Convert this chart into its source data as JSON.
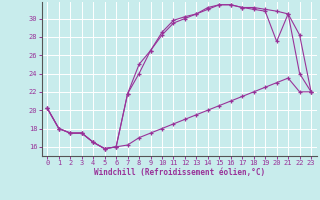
{
  "xlabel": "Windchill (Refroidissement éolien,°C)",
  "bg_color": "#c8ecec",
  "line_color": "#993399",
  "grid_color": "#ffffff",
  "xlim": [
    -0.5,
    23.5
  ],
  "ylim": [
    15.0,
    31.8
  ],
  "yticks": [
    16,
    18,
    20,
    22,
    24,
    26,
    28,
    30
  ],
  "xticks": [
    0,
    1,
    2,
    3,
    4,
    5,
    6,
    7,
    8,
    9,
    10,
    11,
    12,
    13,
    14,
    15,
    16,
    17,
    18,
    19,
    20,
    21,
    22,
    23
  ],
  "line1_x": [
    0,
    1,
    2,
    3,
    4,
    5,
    6,
    7,
    8,
    9,
    10,
    11,
    12,
    13,
    14,
    15,
    16,
    17,
    18,
    19,
    20,
    21,
    22,
    23
  ],
  "line1_y": [
    20.2,
    18.0,
    17.5,
    17.5,
    16.5,
    15.8,
    16.0,
    16.2,
    17.0,
    17.5,
    18.0,
    18.5,
    19.0,
    19.5,
    20.0,
    20.5,
    21.0,
    21.5,
    22.0,
    22.5,
    23.0,
    23.5,
    22.0,
    22.0
  ],
  "line2_x": [
    0,
    1,
    2,
    3,
    4,
    5,
    6,
    7,
    8,
    9,
    10,
    11,
    12,
    13,
    14,
    15,
    16,
    17,
    18,
    19,
    20,
    21,
    22,
    23
  ],
  "line2_y": [
    20.2,
    18.0,
    17.5,
    17.5,
    16.5,
    15.8,
    16.0,
    21.8,
    25.0,
    26.5,
    28.5,
    29.8,
    30.2,
    30.5,
    31.2,
    31.5,
    31.5,
    31.2,
    31.2,
    31.0,
    30.8,
    30.5,
    24.0,
    22.0
  ],
  "line3_x": [
    0,
    1,
    2,
    3,
    4,
    5,
    6,
    7,
    8,
    9,
    10,
    11,
    12,
    13,
    14,
    15,
    16,
    17,
    18,
    19,
    20,
    21,
    22,
    23
  ],
  "line3_y": [
    20.2,
    18.0,
    17.5,
    17.5,
    16.5,
    15.8,
    16.0,
    21.8,
    24.0,
    26.5,
    28.2,
    29.5,
    30.0,
    30.5,
    31.0,
    31.5,
    31.5,
    31.2,
    31.0,
    30.8,
    27.5,
    30.5,
    28.2,
    22.0
  ]
}
